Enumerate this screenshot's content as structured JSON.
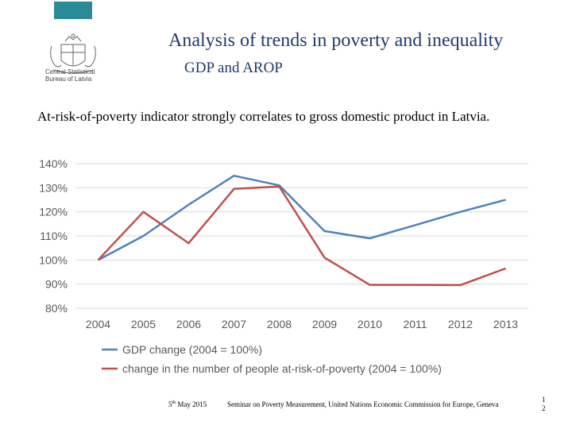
{
  "header": {
    "title": "Analysis of trends in poverty and inequality",
    "subtitle": "GDP and AROP",
    "logo_text_line1": "Central Statistical",
    "logo_text_line2": "Bureau of Latvia",
    "accent_color": "#2a8a98",
    "title_color": "#1f3b6d"
  },
  "body": {
    "text": "At-risk-of-poverty indicator strongly correlates to gross domestic product in Latvia."
  },
  "chart_data": {
    "type": "line",
    "categories": [
      "2004",
      "2005",
      "2006",
      "2007",
      "2008",
      "2009",
      "2010",
      "2011",
      "2012",
      "2013"
    ],
    "yticks": [
      "80%",
      "90%",
      "100%",
      "110%",
      "120%",
      "130%",
      "140%"
    ],
    "ylim": [
      80,
      140
    ],
    "grid": true,
    "legend_position": "bottom",
    "series": [
      {
        "name": "GDP change (2004 = 100%)",
        "color": "#4f81bd",
        "values": [
          100,
          110,
          123,
          135,
          131,
          112,
          109,
          114.5,
          120,
          125
        ]
      },
      {
        "name": "change in the number of people at-risk-of-poverty (2004 = 100%)",
        "color": "#c0504d",
        "values": [
          100,
          120,
          107,
          129.5,
          130.5,
          101,
          89.7,
          89.7,
          89.6,
          96.5
        ]
      }
    ]
  },
  "footer": {
    "date_day": "5",
    "date_sup": "th",
    "date_rest": " May 2015",
    "seminar": "Seminar on Poverty Measurement, United Nations Economic Commission for Europe, Geneva",
    "page_line1": "1",
    "page_line2": "2"
  }
}
